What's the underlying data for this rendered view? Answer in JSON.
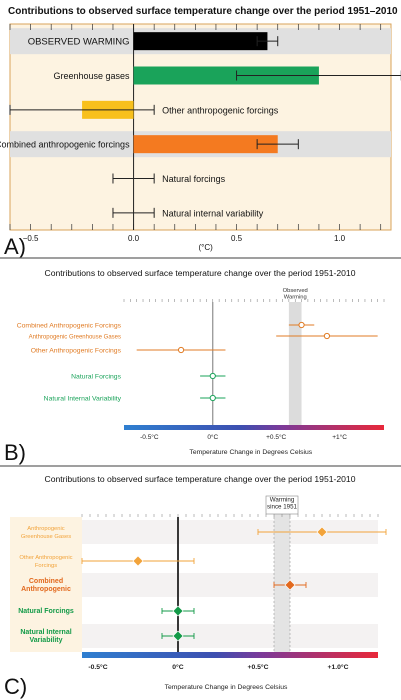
{
  "chart_data": [
    {
      "panel_label": "A)",
      "type": "bar",
      "title": "Contributions to observed surface temperature change over the period 1951–2010",
      "xlabel": "(°C)",
      "xlim": [
        -0.6,
        1.25
      ],
      "xticks": [
        -0.5,
        0.0,
        0.5,
        1.0
      ],
      "xtick_labels": [
        "−0.5",
        "0.0",
        "0.5",
        "1.0"
      ],
      "label_placement": "left-of-zero for positive bars, right-of-bar for others",
      "colors": {
        "background": "#fdf3e1",
        "band": "#e0e0e0"
      },
      "series": [
        {
          "label": "OBSERVED WARMING",
          "value": 0.65,
          "low": 0.6,
          "high": 0.7,
          "color": "#000000",
          "band": true
        },
        {
          "label": "Greenhouse gases",
          "value": 0.9,
          "low": 0.5,
          "high": 1.3,
          "color": "#1aa35a",
          "band": false
        },
        {
          "label": "Other anthropogenic forcings",
          "value": -0.25,
          "low": -0.6,
          "high": 0.1,
          "color": "#f8c01c",
          "band": false
        },
        {
          "label": "Combined anthropogenic forcings",
          "value": 0.7,
          "low": 0.6,
          "high": 0.8,
          "color": "#f47a20",
          "band": true
        },
        {
          "label": "Natural forcings",
          "value": 0.0,
          "low": -0.1,
          "high": 0.1,
          "color": "#000000",
          "band": false
        },
        {
          "label": "Natural internal variability",
          "value": 0.0,
          "low": -0.1,
          "high": 0.1,
          "color": "#000000",
          "band": false
        }
      ]
    },
    {
      "panel_label": "B)",
      "type": "scatter",
      "title": "Contributions to observed surface temperature change over the period 1951-2010",
      "xlabel": "Temperature Change in Degrees Celsius",
      "xlim": [
        -0.7,
        1.35
      ],
      "xticks": [
        -0.5,
        0,
        0.5,
        1
      ],
      "xtick_labels": [
        "-0.5°C",
        "0°C",
        "+0.5°C",
        "+1°C"
      ],
      "observed": {
        "label": "Observed\nWarming",
        "low": 0.6,
        "high": 0.7
      },
      "series": [
        {
          "label": "Combined Anthropogenic Forcings",
          "value": 0.7,
          "low": 0.6,
          "high": 0.8,
          "color": "#e07b24"
        },
        {
          "label": "Anthropogenic Greenhouse Gases",
          "value": 0.9,
          "low": 0.5,
          "high": 1.3,
          "color": "#e07b24"
        },
        {
          "label": "Other Anthropogenic Forcings",
          "value": -0.25,
          "low": -0.6,
          "high": 0.1,
          "color": "#e07b24"
        },
        {
          "label": "Natural Forcings",
          "value": 0.0,
          "low": -0.1,
          "high": 0.1,
          "color": "#1aa35a"
        },
        {
          "label": "Natural Internal Variability",
          "value": 0.0,
          "low": -0.1,
          "high": 0.1,
          "color": "#1aa35a"
        }
      ]
    },
    {
      "panel_label": "C)",
      "type": "scatter",
      "title": "Contributions to observed surface temperature change over the period 1951-2010",
      "xlabel": "Temperature Change  in Degrees Celsius",
      "xlim": [
        -0.6,
        1.25
      ],
      "xticks": [
        -0.5,
        0,
        0.5,
        1
      ],
      "xtick_labels": [
        "-0.5°C",
        "0°C",
        "+0.5°C",
        "+1.0°C"
      ],
      "observed": {
        "label": "Warming\nsince 1951",
        "low": 0.6,
        "high": 0.7
      },
      "series": [
        {
          "label": "Anthropogenic\nGreenhouse Gases",
          "value": 0.9,
          "low": 0.5,
          "high": 1.3,
          "color": "#f2a33a",
          "bold": false
        },
        {
          "label": "Other Anthropogenic\nForcings",
          "value": -0.25,
          "low": -0.6,
          "high": 0.1,
          "color": "#f2a33a",
          "bold": false
        },
        {
          "label": "Combined\nAnthropogenic",
          "value": 0.7,
          "low": 0.6,
          "high": 0.8,
          "color": "#e2691e",
          "bold": true
        },
        {
          "label": "Natural Forcings",
          "value": 0.0,
          "low": -0.1,
          "high": 0.1,
          "color": "#139a48",
          "bold": true
        },
        {
          "label": "Natural Internal\nVariability",
          "value": 0.0,
          "low": -0.1,
          "high": 0.1,
          "color": "#139a48",
          "bold": true
        }
      ]
    }
  ]
}
